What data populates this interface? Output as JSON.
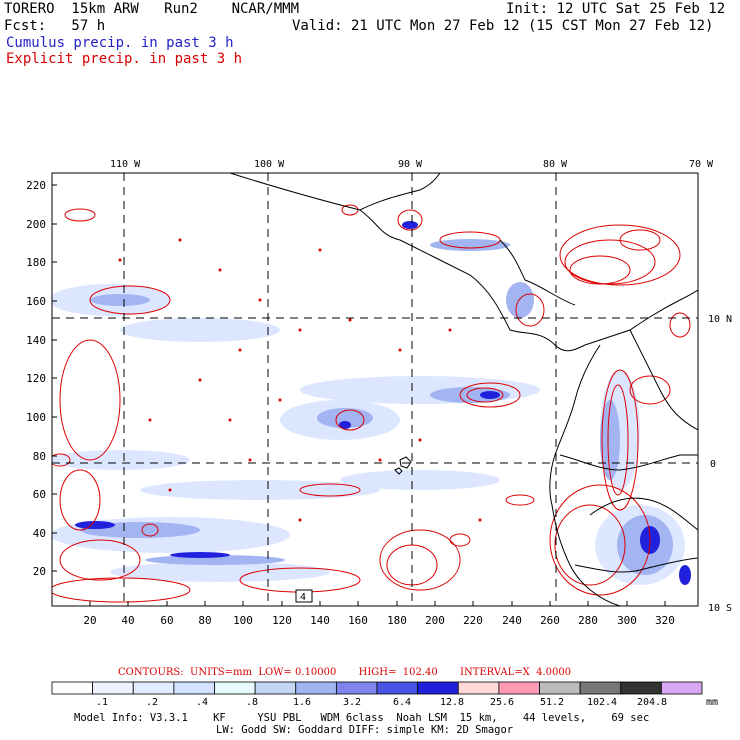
{
  "header": {
    "model": "TORERO  15km ARW   Run2    NCAR/MMM",
    "init": "Init: 12 UTC Sat 25 Feb 12",
    "fcst": "Fcst:   57 h",
    "valid": "Valid: 21 UTC Mon 27 Feb 12 (15 CST Mon 27 Feb 12)",
    "cumulus_label": "Cumulus precip. in past 3 h",
    "explicit_label": "Explicit precip. in past 3 h"
  },
  "map": {
    "lon_labels": [
      "110 W",
      "100 W",
      "90 W",
      "80 W",
      "70 W"
    ],
    "lat_labels": [
      "10 N",
      "0",
      "10 S"
    ],
    "x_ticks": [
      "20",
      "40",
      "60",
      "80",
      "100",
      "120",
      "140",
      "160",
      "180",
      "200",
      "220",
      "240",
      "260",
      "280",
      "300",
      "320"
    ],
    "y_ticks": [
      "20",
      "40",
      "60",
      "80",
      "100",
      "120",
      "140",
      "160",
      "180",
      "200",
      "220"
    ],
    "box_label": "4"
  },
  "contours_line": "CONTOURS:  UNITS=mm  LOW= 0.10000       HIGH=  102.40       INTERVAL=X  4.0000",
  "colorbar": {
    "colors": [
      "#ffffff",
      "#eef3ff",
      "#e2ebff",
      "#d3e2ff",
      "#e8fcff",
      "#c4d8f6",
      "#a3b4f2",
      "#7f84ee",
      "#4a55e6",
      "#2020dd",
      "#ffd9d9",
      "#ff99b4",
      "#bbbbbb",
      "#777777",
      "#333333",
      "#d8a8f2"
    ],
    "labels": [
      ".1",
      ".2",
      ".4",
      ".8",
      "1.6",
      "3.2",
      "6.4",
      "12.8",
      "25.6",
      "51.2",
      "102.4",
      "204.8"
    ],
    "units": "mm"
  },
  "footer": {
    "line1": "Model Info: V3.3.1    KF     YSU PBL   WDM 6class  Noah LSM  15 km,    44 levels,    69 sec",
    "line2": "LW: Godd SW: Goddard DIFF: simple KM: 2D Smagor"
  }
}
